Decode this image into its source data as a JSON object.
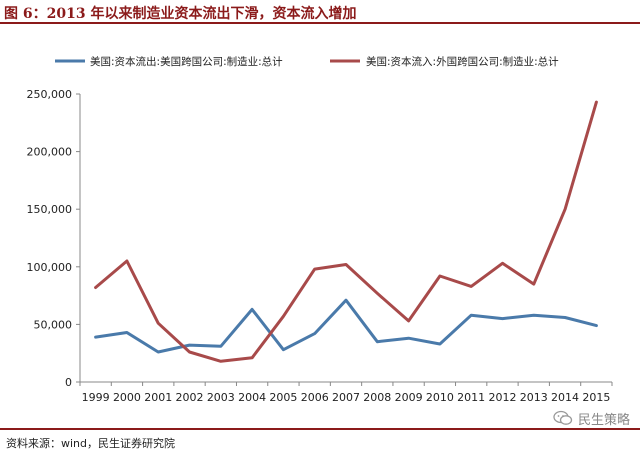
{
  "title": "图 6：2013 年以来制造业资本流出下滑，资本流入增加",
  "source": "资料来源：wind，民生证券研究院",
  "watermark": "民生策略",
  "chart_data": {
    "type": "line",
    "title": "",
    "xlabel": "",
    "ylabel": "",
    "x": [
      "1999",
      "2000",
      "2001",
      "2002",
      "2003",
      "2004",
      "2005",
      "2006",
      "2007",
      "2008",
      "2009",
      "2010",
      "2011",
      "2012",
      "2013",
      "2014",
      "2015"
    ],
    "ylim": [
      0,
      250000
    ],
    "yticks": [
      0,
      50000,
      100000,
      150000,
      200000,
      250000
    ],
    "ytick_labels": [
      "0",
      "50,000",
      "100,000",
      "150,000",
      "200,000",
      "250,000"
    ],
    "grid": false,
    "legend_position": "top",
    "series": [
      {
        "name": "美国:资本流出:美国跨国公司:制造业:总计",
        "color": "#4a7aaa",
        "values": [
          39000,
          43000,
          26000,
          32000,
          31000,
          63000,
          28000,
          42000,
          71000,
          35000,
          38000,
          33000,
          58000,
          55000,
          58000,
          56000,
          49000
        ]
      },
      {
        "name": "美国:资本流入:外国跨国公司:制造业:总计",
        "color": "#a84a4a",
        "values": [
          82000,
          105000,
          51000,
          26000,
          18000,
          21000,
          57000,
          98000,
          102000,
          77000,
          53000,
          92000,
          83000,
          103000,
          85000,
          150000,
          243000
        ]
      }
    ]
  }
}
